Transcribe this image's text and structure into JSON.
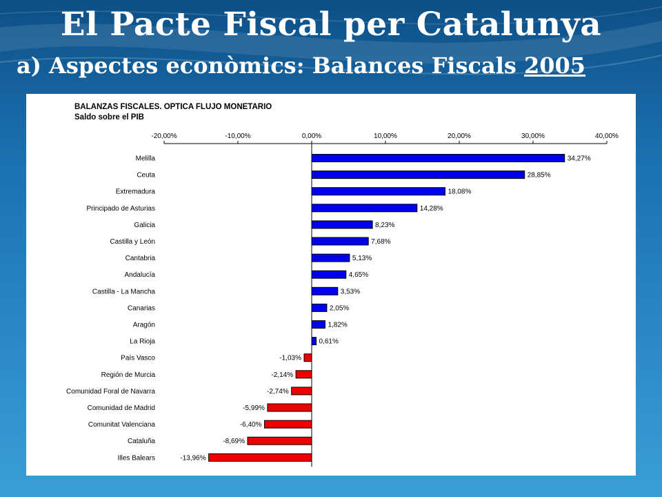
{
  "slide": {
    "title": "El Pacte Fiscal per Catalunya",
    "subtitle_prefix": "a)  Aspectes econòmics: Balances  Fiscals ",
    "subtitle_year": "2005"
  },
  "colors": {
    "positive_bar": "#0000ee",
    "negative_bar": "#ee0000",
    "background_top": "#0d4f86",
    "background_bottom": "#3a9fd6"
  },
  "chart_data": {
    "type": "bar",
    "orientation": "horizontal",
    "title": "BALANZAS FISCALES. OPTICA FLUJO MONETARIO",
    "subtitle": "Saldo sobre el PIB",
    "xlim": [
      -20,
      40
    ],
    "ticks": [
      -20,
      -10,
      0,
      10,
      20,
      30,
      40
    ],
    "tick_labels": [
      "-20,00%",
      "-10,00%",
      "0,00%",
      "10,00%",
      "20,00%",
      "30,00%",
      "40,00%"
    ],
    "categories": [
      "Melilla",
      "Ceuta",
      "Extremadura",
      "Principado de Asturias",
      "Galicia",
      "Castilla y León",
      "Cantabria",
      "Andalucía",
      "Castilla - La Mancha",
      "Canarias",
      "Aragón",
      "La Rioja",
      "País Vasco",
      "Región de Murcia",
      "Comunidad Foral de Navarra",
      "Comunidad de Madrid",
      "Comunitat Valenciana",
      "Cataluña",
      "Illes Balears"
    ],
    "values": [
      34.27,
      28.85,
      18.08,
      14.28,
      8.23,
      7.68,
      5.13,
      4.65,
      3.53,
      2.05,
      1.82,
      0.61,
      -1.03,
      -2.14,
      -2.74,
      -5.99,
      -6.4,
      -8.69,
      -13.96
    ],
    "value_labels": [
      "34,27%",
      "28,85%",
      "18,08%",
      "14,28%",
      "8,23%",
      "7,68%",
      "5,13%",
      "4,65%",
      "3,53%",
      "2,05%",
      "1,82%",
      "0,61%",
      "-1,03%",
      "-2,14%",
      "-2,74%",
      "-5,99%",
      "-6,40%",
      "-8,69%",
      "-13,96%"
    ],
    "grid": false,
    "legend": "none"
  }
}
